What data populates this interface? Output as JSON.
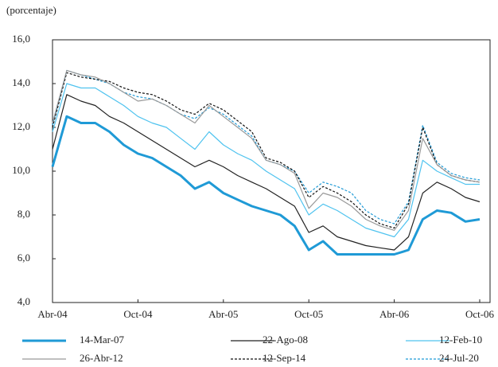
{
  "chart_data": {
    "type": "line",
    "y_label": "(porcentaje)",
    "categories": [
      "Abr-04",
      null,
      null,
      null,
      null,
      null,
      "Oct-04",
      null,
      null,
      null,
      null,
      null,
      "Abr-05",
      null,
      null,
      null,
      null,
      null,
      "Oct-05",
      null,
      null,
      null,
      null,
      null,
      "Abr-06",
      null,
      null,
      null,
      null,
      null,
      "Oct-06"
    ],
    "ylim": [
      4,
      16
    ],
    "yticks": [
      {
        "value": 4,
        "label": "4,0"
      },
      {
        "value": 6,
        "label": "6,0"
      },
      {
        "value": 8,
        "label": "8,0"
      },
      {
        "value": 10,
        "label": "10,0"
      },
      {
        "value": 12,
        "label": "12,0"
      },
      {
        "value": 14,
        "label": "14,0"
      },
      {
        "value": 16,
        "label": "16,0"
      }
    ],
    "series": [
      {
        "name": "14-Mar-07",
        "color": "#1f9ad6",
        "style": "solid",
        "width": 3,
        "values": [
          10.2,
          12.5,
          12.2,
          12.2,
          11.8,
          11.2,
          10.8,
          10.6,
          10.2,
          9.8,
          9.2,
          9.5,
          9.0,
          8.7,
          8.4,
          8.2,
          8.0,
          7.5,
          6.4,
          6.8,
          6.2,
          6.2,
          6.2,
          6.2,
          6.2,
          6.4,
          7.8,
          8.2,
          8.1,
          7.7,
          7.8
        ]
      },
      {
        "name": "22-Ago-08",
        "color": "#222222",
        "style": "solid",
        "width": 1.2,
        "values": [
          11.0,
          13.5,
          13.2,
          13.0,
          12.5,
          12.2,
          11.8,
          11.4,
          11.0,
          10.6,
          10.2,
          10.5,
          10.2,
          9.8,
          9.5,
          9.2,
          8.8,
          8.4,
          7.2,
          7.5,
          7.0,
          6.8,
          6.6,
          6.5,
          6.4,
          7.0,
          9.0,
          9.5,
          9.2,
          8.8,
          8.6
        ]
      },
      {
        "name": "12-Feb-10",
        "color": "#4fc3ef",
        "style": "solid",
        "width": 1.2,
        "values": [
          11.8,
          14.0,
          13.8,
          13.8,
          13.4,
          13.0,
          12.5,
          12.2,
          12.0,
          11.5,
          11.0,
          11.8,
          11.2,
          10.8,
          10.5,
          10.0,
          9.6,
          9.2,
          8.0,
          8.5,
          8.2,
          7.8,
          7.4,
          7.2,
          7.0,
          7.8,
          10.5,
          10.0,
          9.7,
          9.4,
          9.4
        ]
      },
      {
        "name": "26-Abr-12",
        "color": "#999999",
        "style": "solid",
        "width": 1.2,
        "values": [
          12.2,
          14.6,
          14.4,
          14.3,
          14.0,
          13.6,
          13.2,
          13.3,
          13.0,
          12.6,
          12.2,
          13.0,
          12.5,
          12.0,
          11.5,
          10.5,
          10.3,
          9.9,
          8.3,
          9.0,
          8.8,
          8.4,
          7.8,
          7.5,
          7.3,
          8.2,
          11.5,
          10.3,
          9.8,
          9.6,
          9.5
        ]
      },
      {
        "name": "12-Sep-14",
        "color": "#111111",
        "style": "dashed",
        "width": 1.2,
        "values": [
          12.0,
          14.5,
          14.3,
          14.2,
          14.1,
          13.8,
          13.6,
          13.5,
          13.2,
          12.8,
          12.6,
          13.1,
          12.8,
          12.3,
          11.8,
          10.6,
          10.4,
          10.0,
          8.8,
          9.3,
          9.0,
          8.6,
          8.0,
          7.6,
          7.4,
          8.5,
          12.0,
          10.3,
          9.8,
          9.6,
          9.5
        ]
      },
      {
        "name": "24-Jul-20",
        "color": "#1f9ad6",
        "style": "dashed",
        "width": 1.2,
        "values": [
          12.1,
          14.6,
          14.4,
          14.2,
          14.0,
          13.6,
          13.4,
          13.3,
          13.0,
          12.6,
          12.4,
          12.9,
          12.6,
          12.1,
          11.6,
          10.5,
          10.3,
          10.0,
          9.0,
          9.5,
          9.3,
          9.0,
          8.2,
          7.8,
          7.6,
          8.6,
          12.1,
          10.4,
          9.9,
          9.7,
          9.6
        ]
      }
    ]
  }
}
